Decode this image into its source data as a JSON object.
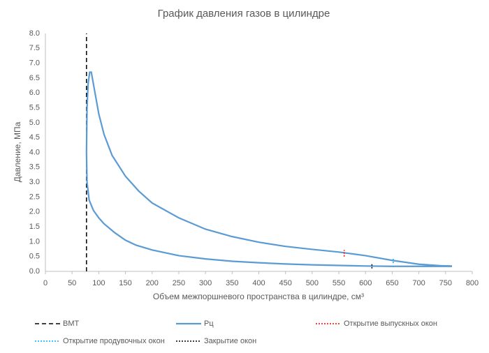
{
  "chart_data": {
    "type": "line",
    "title": "График давления газов в цилиндре",
    "x_label": "Объем межпоршневого пространства в цилиндре, см³",
    "y_label": "Давление, МПа",
    "xlim": [
      0,
      800
    ],
    "xticks": [
      0,
      50,
      100,
      150,
      200,
      250,
      300,
      350,
      400,
      450,
      500,
      550,
      600,
      650,
      700,
      750,
      800
    ],
    "ylim": [
      0,
      8
    ],
    "yticks": [
      {
        "value": 0,
        "label": "0.0"
      },
      0.5,
      {
        "value": 1,
        "label": "1.0"
      },
      1.5,
      {
        "value": 2,
        "label": "2.0"
      },
      2.5,
      {
        "value": 3,
        "label": "3.0"
      },
      3.5,
      {
        "value": 4,
        "label": "4.0"
      },
      4.5,
      {
        "value": 5,
        "label": "5.0"
      },
      5.5,
      {
        "value": 6,
        "label": "6.0"
      },
      6.5,
      {
        "value": 7,
        "label": "7.0"
      },
      7.5,
      {
        "value": 8,
        "label": "8.0"
      }
    ],
    "grid": false,
    "legend": "bottom",
    "series": [
      {
        "name": "ВМТ",
        "color": "#000000",
        "dash": "dashed",
        "x": [
          77,
          77
        ],
        "values": [
          0,
          8
        ]
      },
      {
        "name": "Рц",
        "color": "#5b9bd5",
        "dash": "solid",
        "x": [
          762,
          700,
          650,
          600,
          550,
          500,
          450,
          400,
          350,
          300,
          250,
          200,
          170,
          150,
          130,
          110,
          100,
          90,
          82,
          78,
          77,
          78,
          80,
          83,
          86,
          90,
          100,
          110,
          125,
          150,
          175,
          200,
          250,
          300,
          350,
          400,
          450,
          500,
          550,
          600,
          650,
          700,
          740,
          762
        ],
        "values": [
          0.17,
          0.17,
          0.17,
          0.18,
          0.2,
          0.22,
          0.25,
          0.29,
          0.34,
          0.42,
          0.53,
          0.72,
          0.88,
          1.05,
          1.3,
          1.6,
          1.8,
          2.05,
          2.4,
          3.0,
          4.0,
          5.5,
          6.3,
          6.7,
          6.7,
          6.3,
          5.3,
          4.6,
          3.9,
          3.2,
          2.7,
          2.3,
          1.8,
          1.42,
          1.17,
          0.98,
          0.84,
          0.74,
          0.65,
          0.53,
          0.37,
          0.24,
          0.19,
          0.18
        ]
      },
      {
        "name": "Открытие выпускных окон",
        "color": "#ff0000",
        "dash": "dotted",
        "x": [
          560,
          560
        ],
        "values": [
          0.5,
          0.72
        ]
      },
      {
        "name": "Открытие продувочных окон",
        "color": "#00b0f0",
        "dash": "dotted",
        "x": [
          652,
          652
        ],
        "values": [
          0.28,
          0.42
        ]
      },
      {
        "name": "Закрытие окон",
        "color": "#000000",
        "dash": "dotted",
        "x": [
          612,
          612
        ],
        "values": [
          0.1,
          0.25
        ]
      }
    ]
  }
}
